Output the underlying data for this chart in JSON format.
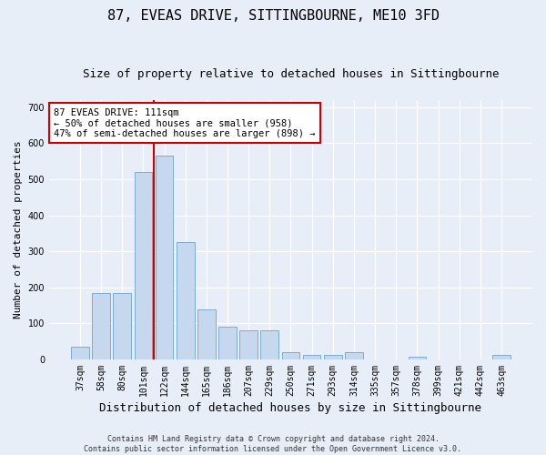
{
  "title": "87, EVEAS DRIVE, SITTINGBOURNE, ME10 3FD",
  "subtitle": "Size of property relative to detached houses in Sittingbourne",
  "xlabel": "Distribution of detached houses by size in Sittingbourne",
  "ylabel": "Number of detached properties",
  "footer_line1": "Contains HM Land Registry data © Crown copyright and database right 2024.",
  "footer_line2": "Contains public sector information licensed under the Open Government Licence v3.0.",
  "categories": [
    "37sqm",
    "58sqm",
    "80sqm",
    "101sqm",
    "122sqm",
    "144sqm",
    "165sqm",
    "186sqm",
    "207sqm",
    "229sqm",
    "250sqm",
    "271sqm",
    "293sqm",
    "314sqm",
    "335sqm",
    "357sqm",
    "378sqm",
    "399sqm",
    "421sqm",
    "442sqm",
    "463sqm"
  ],
  "values": [
    35,
    185,
    185,
    520,
    565,
    325,
    140,
    90,
    80,
    80,
    20,
    12,
    12,
    20,
    0,
    0,
    8,
    0,
    0,
    0,
    12
  ],
  "bar_color": "#c5d8ed",
  "bar_edge_color": "#7aadd4",
  "vline_color": "#cc0000",
  "vline_pos": 3.5,
  "annotation_text": "87 EVEAS DRIVE: 111sqm\n← 50% of detached houses are smaller (958)\n47% of semi-detached houses are larger (898) →",
  "annotation_box_facecolor": "#ffffff",
  "annotation_box_edgecolor": "#cc0000",
  "ylim": [
    0,
    720
  ],
  "yticks": [
    0,
    100,
    200,
    300,
    400,
    500,
    600,
    700
  ],
  "background_color": "#e8eef8",
  "plot_bg_color": "#e8eef8",
  "grid_color": "#ffffff",
  "title_fontsize": 11,
  "subtitle_fontsize": 9,
  "xlabel_fontsize": 9,
  "ylabel_fontsize": 8,
  "tick_fontsize": 7,
  "footer_fontsize": 6,
  "ann_fontsize": 7.5
}
